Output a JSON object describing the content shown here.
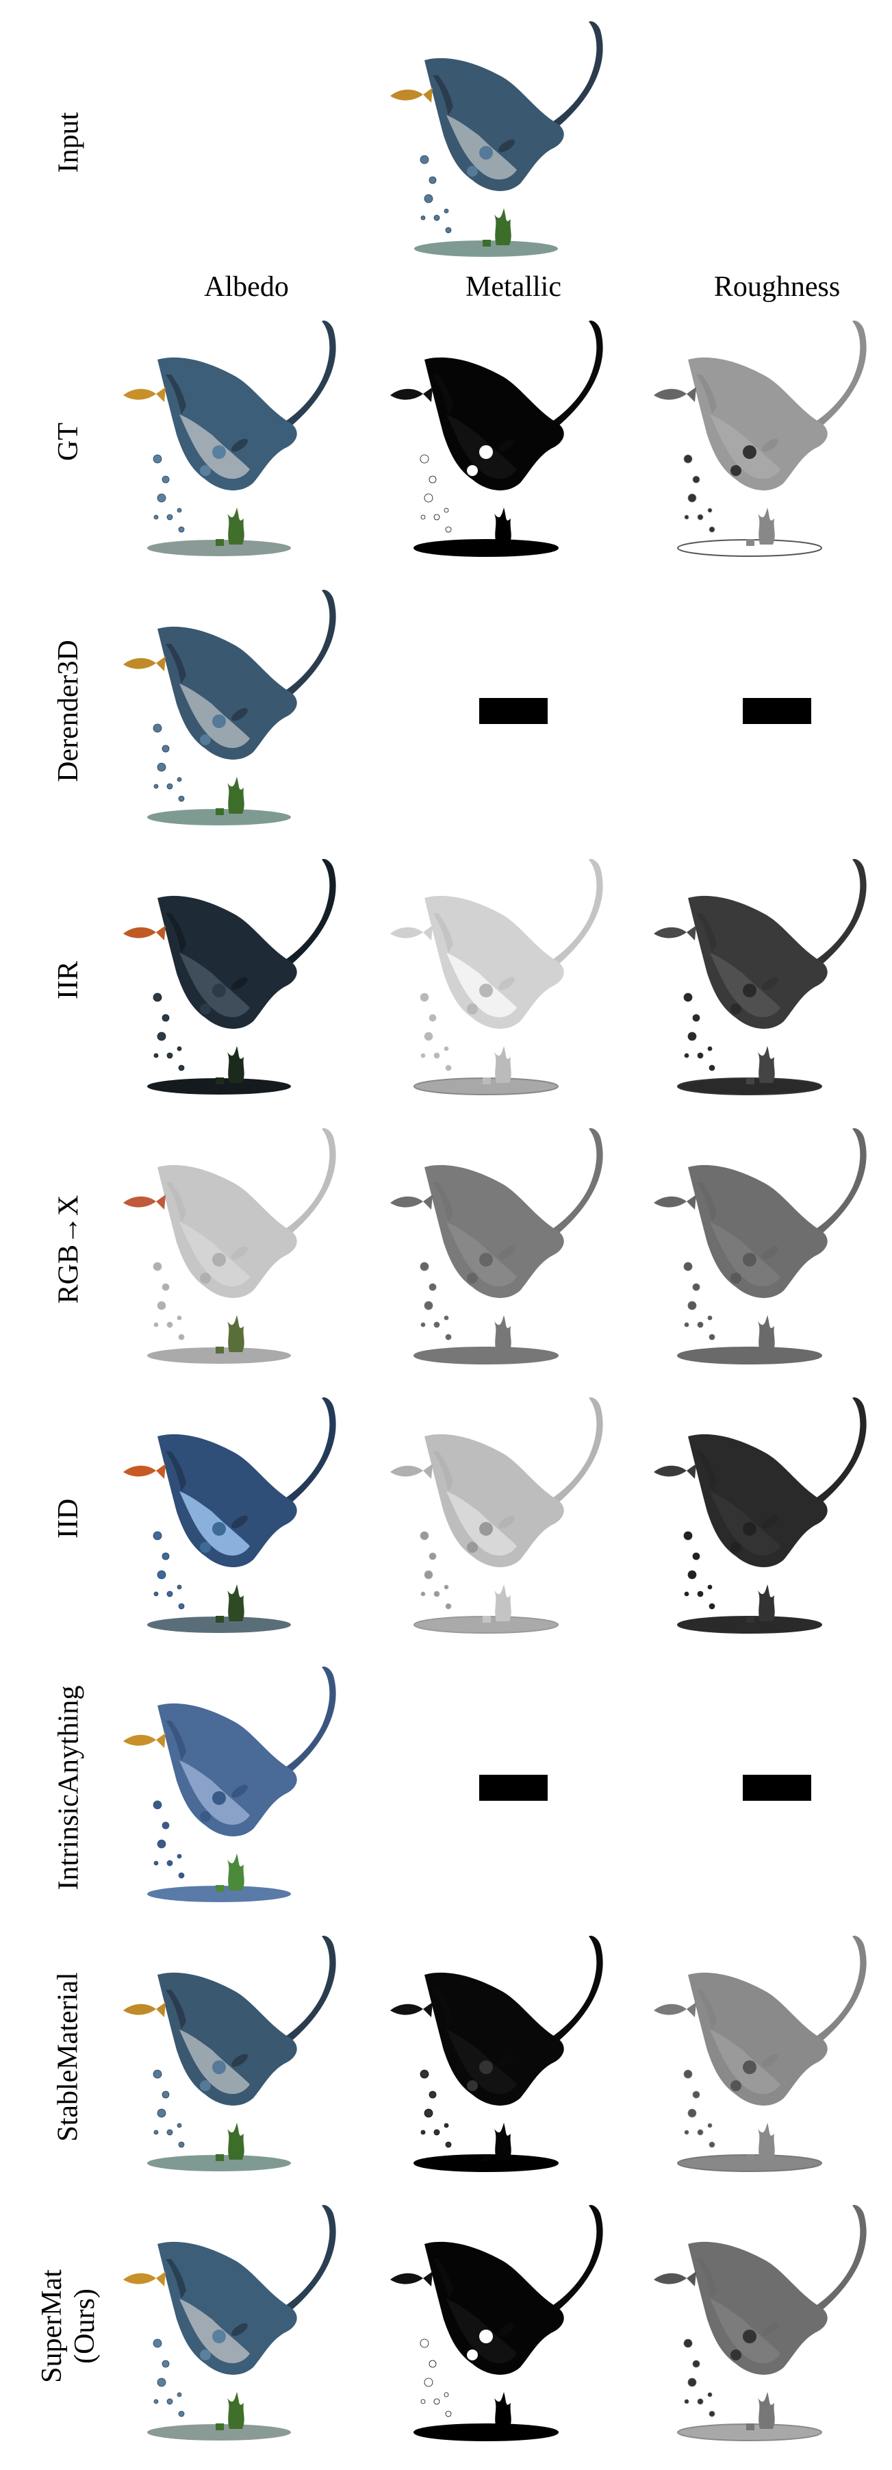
{
  "input_label": "Input",
  "columns": [
    "Albedo",
    "Metallic",
    "Roughness"
  ],
  "rows": [
    {
      "method": "GT",
      "cells": [
        {
          "kind": "albedo",
          "body": "#3d5e78",
          "belly": "#a0aab2",
          "ground": "#8a9a96",
          "fish": "#c8902a",
          "plant": "#3f6f2a",
          "spots": "#5a80a0",
          "wing": "#2a3f52"
        },
        {
          "kind": "map",
          "body": "#050505",
          "belly": "#111111",
          "ground": "#000000",
          "fish": "#111111",
          "plant": "#000000",
          "spots": "#ffffff",
          "wing": "#0a0a0a",
          "ringground": "#000000"
        },
        {
          "kind": "map",
          "body": "#9a9a9a",
          "belly": "#a8a8a8",
          "ground": "#ffffff",
          "fish": "#666666",
          "plant": "#888888",
          "spots": "#333333",
          "wing": "#8e8e8e",
          "ringground": "#555555"
        }
      ]
    },
    {
      "method": "Derender3D",
      "cells": [
        {
          "kind": "albedo",
          "body": "#3a5870",
          "belly": "#9aa6ae",
          "ground": "#7f9a92",
          "fish": "#c08a28",
          "plant": "#3c6e2a",
          "spots": "#557a98",
          "wing": "#2a3c4e"
        },
        {
          "kind": "na"
        },
        {
          "kind": "na"
        }
      ]
    },
    {
      "method": "IIR",
      "cells": [
        {
          "kind": "albedo",
          "body": "#1e2b36",
          "belly": "#3f4e5a",
          "ground": "#141a1e",
          "fish": "#c05a24",
          "plant": "#1c2a1c",
          "spots": "#2a3a46",
          "wing": "#151e26"
        },
        {
          "kind": "map",
          "body": "#d2d2d2",
          "belly": "#f2f2f2",
          "ground": "#a8a8a8",
          "fish": "#d0d0d0",
          "plant": "#bbbbbb",
          "spots": "#b8b8b8",
          "wing": "#c4c4c4",
          "ringground": "#888888"
        },
        {
          "kind": "map",
          "body": "#3a3a3a",
          "belly": "#505050",
          "ground": "#2a2a2a",
          "fish": "#4a4a4a",
          "plant": "#444444",
          "spots": "#2a2a2a",
          "wing": "#333333",
          "ringground": "#333333"
        }
      ]
    },
    {
      "method": "RGB→X",
      "cells": [
        {
          "kind": "albedo",
          "body": "#c6c6c6",
          "belly": "#d4d4d4",
          "ground": "#aaaaaa",
          "fish": "#c05a3a",
          "plant": "#5a6e3a",
          "spots": "#b0b0b0",
          "wing": "#bdbdbd"
        },
        {
          "kind": "map",
          "body": "#7a7a7a",
          "belly": "#888888",
          "ground": "#777777",
          "fish": "#6e6e6e",
          "plant": "#777777",
          "spots": "#666666",
          "wing": "#747474",
          "ringground": "#777777"
        },
        {
          "kind": "map",
          "body": "#6e6e6e",
          "belly": "#7a7a7a",
          "ground": "#6a6a6a",
          "fish": "#666666",
          "plant": "#6a6a6a",
          "spots": "#5a5a5a",
          "wing": "#686868",
          "ringground": "#6a6a6a"
        }
      ]
    },
    {
      "method": "IID",
      "cells": [
        {
          "kind": "albedo",
          "body": "#2f4e78",
          "belly": "#8ab0dc",
          "ground": "#5a6e7a",
          "fish": "#c85a24",
          "plant": "#2e4a24",
          "spots": "#3e6a98",
          "wing": "#243a58"
        },
        {
          "kind": "map",
          "body": "#bdbdbd",
          "belly": "#d8d8d8",
          "ground": "#aaaaaa",
          "fish": "#b0b0b0",
          "plant": "#c4c4c4",
          "spots": "#999999",
          "wing": "#b4b4b4",
          "ringground": "#999999"
        },
        {
          "kind": "map",
          "body": "#2a2a2a",
          "belly": "#333333",
          "ground": "#2a2a2a",
          "fish": "#3a3a3a",
          "plant": "#333333",
          "spots": "#222222",
          "wing": "#262626",
          "ringground": "#2a2a2a"
        }
      ]
    },
    {
      "method": "IntrinsicAnything",
      "cells": [
        {
          "kind": "albedo",
          "body": "#4a6a98",
          "belly": "#8aa2c8",
          "ground": "#5a7aa8",
          "fish": "#c8902a",
          "plant": "#4a8a3a",
          "spots": "#3a5a88",
          "wing": "#3a5680"
        },
        {
          "kind": "na"
        },
        {
          "kind": "na"
        }
      ]
    },
    {
      "method": "StableMaterial",
      "cells": [
        {
          "kind": "albedo",
          "body": "#3a5870",
          "belly": "#9aa6ae",
          "ground": "#7f9a92",
          "fish": "#c08a28",
          "plant": "#3c6e2a",
          "spots": "#557a98",
          "wing": "#2a3c4e"
        },
        {
          "kind": "map",
          "body": "#080808",
          "belly": "#121212",
          "ground": "#000000",
          "fish": "#111111",
          "plant": "#050505",
          "spots": "#333333",
          "wing": "#0a0a0a",
          "ringground": "#000000"
        },
        {
          "kind": "map",
          "body": "#8a8a8a",
          "belly": "#9a9a9a",
          "ground": "#888888",
          "fish": "#7a7a7a",
          "plant": "#8a8a8a",
          "spots": "#555555",
          "wing": "#848484",
          "ringground": "#777777"
        }
      ]
    },
    {
      "method": "SuperMat\n(Ours)",
      "cells": [
        {
          "kind": "albedo",
          "body": "#3d5e78",
          "belly": "#a0aab2",
          "ground": "#8a9a96",
          "fish": "#c8902a",
          "plant": "#3f6f2a",
          "spots": "#5a80a0",
          "wing": "#2a3f52"
        },
        {
          "kind": "map",
          "body": "#050505",
          "belly": "#111111",
          "ground": "#000000",
          "fish": "#111111",
          "plant": "#000000",
          "spots": "#ffffff",
          "wing": "#0a0a0a",
          "ringground": "#000000"
        },
        {
          "kind": "map",
          "body": "#6e6e6e",
          "belly": "#7c7c7c",
          "ground": "#a8a8a8",
          "fish": "#555555",
          "plant": "#777777",
          "spots": "#333333",
          "wing": "#6a6a6a",
          "ringground": "#8a8a8a"
        }
      ]
    }
  ],
  "input_cell": {
    "kind": "albedo",
    "body": "#3a5870",
    "belly": "#9aa6ae",
    "ground": "#7f9a92",
    "fish": "#c08a28",
    "plant": "#3c6e2a",
    "spots": "#557a98",
    "wing": "#2a3c4e"
  }
}
